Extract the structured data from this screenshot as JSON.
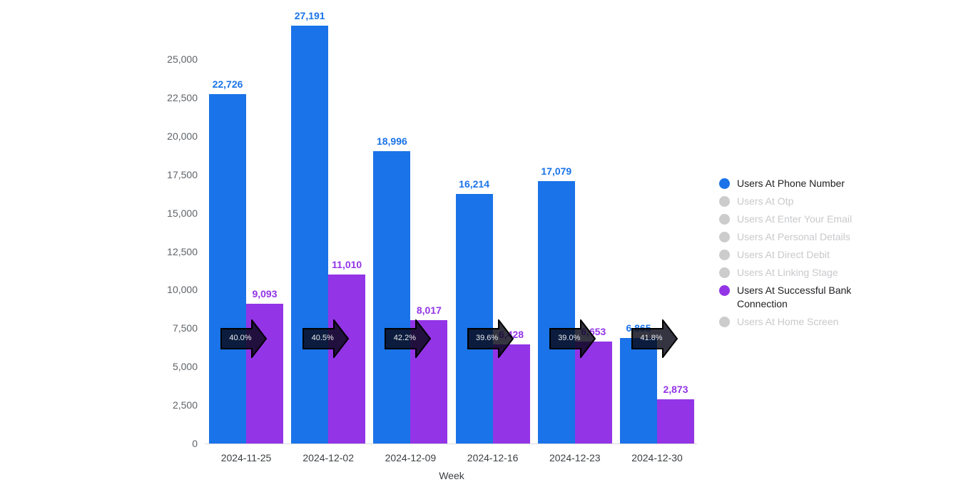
{
  "chart_data": {
    "type": "bar",
    "title": "",
    "xlabel": "Week",
    "ylabel": "",
    "ylim": [
      0,
      27500
    ],
    "yticks": [
      "0",
      "2,500",
      "5,000",
      "7,500",
      "10,000",
      "12,500",
      "15,000",
      "17,500",
      "20,000",
      "22,500",
      "25,000"
    ],
    "categories": [
      "2024-11-25",
      "2024-12-02",
      "2024-12-09",
      "2024-12-16",
      "2024-12-23",
      "2024-12-30"
    ],
    "series": [
      {
        "name": "Users At Phone Number",
        "color": "#1a73e8",
        "values": [
          22726,
          27191,
          18996,
          16214,
          17079,
          6865
        ],
        "labels": [
          "22,726",
          "27,191",
          "18,996",
          "16,214",
          "17,079",
          "6,865"
        ]
      },
      {
        "name": "Users At Successful Bank Connection",
        "color": "#9334e6",
        "values": [
          9093,
          11010,
          8017,
          6428,
          6653,
          2873
        ],
        "labels": [
          "9,093",
          "11,010",
          "8,017",
          "6,428",
          "6,653",
          "2,873"
        ]
      }
    ],
    "conversion_rates": [
      "40.0%",
      "40.5%",
      "42.2%",
      "39.6%",
      "39.0%",
      "41.8%"
    ],
    "grid": false,
    "legend_position": "right"
  },
  "legend": [
    {
      "label": "Users At Phone Number",
      "color": "#1a73e8",
      "active": true
    },
    {
      "label": "Users At Otp",
      "color": "#cccccc",
      "active": false
    },
    {
      "label": "Users At Enter Your Email",
      "color": "#cccccc",
      "active": false
    },
    {
      "label": "Users At Personal Details",
      "color": "#cccccc",
      "active": false
    },
    {
      "label": "Users At Direct Debit",
      "color": "#cccccc",
      "active": false
    },
    {
      "label": "Users At Linking Stage",
      "color": "#cccccc",
      "active": false
    },
    {
      "label": "Users At Successful Bank Connection",
      "color": "#9334e6",
      "active": true
    },
    {
      "label": "Users At Home Screen",
      "color": "#cccccc",
      "active": false
    }
  ]
}
